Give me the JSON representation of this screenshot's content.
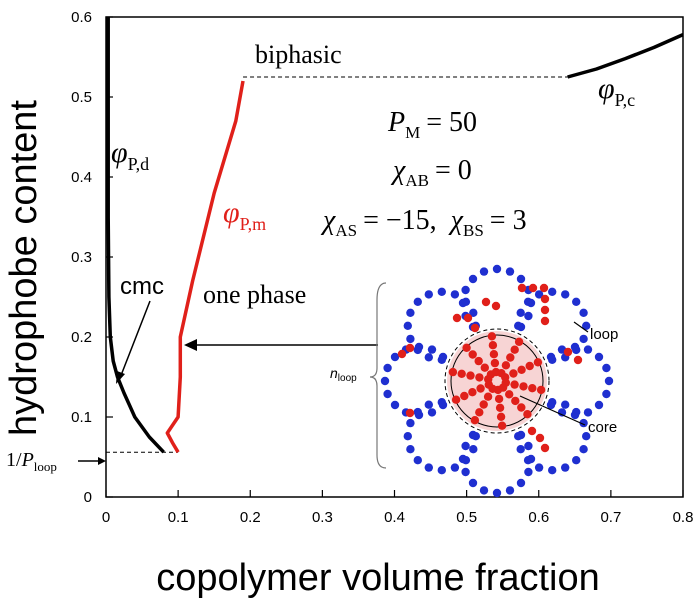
{
  "chart_data": {
    "type": "line",
    "xlabel": "copolymer volume fraction",
    "ylabel": "hydrophobe content",
    "xlim": [
      0,
      0.8
    ],
    "ylim": [
      0,
      0.6
    ],
    "x_ticks": [
      "0",
      "0.1",
      "0.2",
      "0.3",
      "0.4",
      "0.5",
      "0.6",
      "0.7",
      "0.8"
    ],
    "y_ticks": [
      "0",
      "0.1",
      "0.2",
      "0.3",
      "0.4",
      "0.5",
      "0.6"
    ],
    "x_tick_values": [
      0,
      0.1,
      0.2,
      0.3,
      0.4,
      0.5,
      0.6,
      0.7,
      0.8
    ],
    "y_tick_values": [
      0,
      0.1,
      0.2,
      0.3,
      0.4,
      0.5,
      0.6
    ],
    "grid": false,
    "series": [
      {
        "name": "φP,d",
        "color": "#000000",
        "points": [
          [
            0.003,
            0.6
          ],
          [
            0.003,
            0.45
          ],
          [
            0.003,
            0.35
          ],
          [
            0.004,
            0.25
          ],
          [
            0.006,
            0.2
          ],
          [
            0.01,
            0.17
          ],
          [
            0.016,
            0.15
          ],
          [
            0.025,
            0.13
          ],
          [
            0.04,
            0.1
          ],
          [
            0.06,
            0.075
          ],
          [
            0.08,
            0.056
          ]
        ]
      },
      {
        "name": "φP,m",
        "color": "#e0201a",
        "points": [
          [
            0.1,
            0.056
          ],
          [
            0.092,
            0.068
          ],
          [
            0.085,
            0.08
          ],
          [
            0.1,
            0.1
          ],
          [
            0.103,
            0.15
          ],
          [
            0.103,
            0.2
          ],
          [
            0.12,
            0.27
          ],
          [
            0.15,
            0.38
          ],
          [
            0.18,
            0.47
          ],
          [
            0.19,
            0.52
          ]
        ]
      },
      {
        "name": "φP,c",
        "color": "#000000",
        "points": [
          [
            0.64,
            0.525
          ],
          [
            0.68,
            0.535
          ],
          [
            0.72,
            0.548
          ],
          [
            0.76,
            0.562
          ],
          [
            0.8,
            0.578
          ]
        ]
      }
    ],
    "dashed_lines": [
      {
        "x": [
          0.19,
          0.64
        ],
        "y": [
          0.525,
          0.525
        ]
      },
      {
        "x": [
          0.0,
          0.1
        ],
        "y": [
          0.056,
          0.056
        ]
      }
    ],
    "annotations": {
      "biphasic": "biphasic",
      "one_phase": "one phase",
      "cmc": "cmc",
      "phi_base": "φ",
      "sub_pd": "P,d",
      "sub_pm": "P,m",
      "sub_pc": "P,c",
      "pm_label": "P",
      "pm_sub": "M",
      "pm_value": "= 50",
      "chi": "χ",
      "chi_ab_sub": "AB",
      "chi_ab_value": "= 0",
      "chi_as_sub": "AS",
      "chi_as_value": "= −15,",
      "chi_bs_sub": "BS",
      "chi_bs_value": "= 3",
      "loop_ratio_prefix": "1/",
      "loop_ratio_P": "P",
      "loop_ratio_sub": "loop",
      "inset_loop": "loop",
      "inset_core": "core",
      "inset_n": "n",
      "inset_n_sub": "loop"
    }
  }
}
